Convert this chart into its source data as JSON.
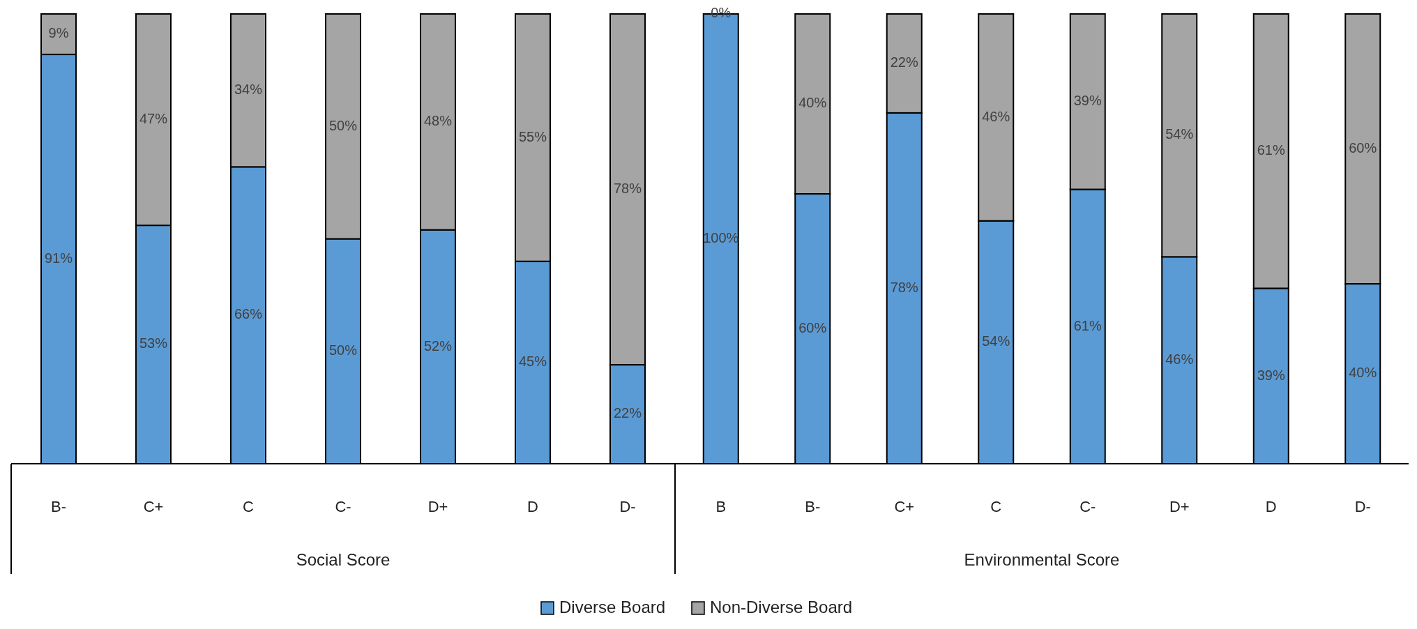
{
  "chart_data": [
    {
      "type": "bar",
      "stacked": true,
      "xlabel": "Social Score",
      "legend": "bottom",
      "categories": [
        "B-",
        "C+",
        "C",
        "C-",
        "D+",
        "D",
        "D-"
      ],
      "series": [
        {
          "name": "Diverse Board",
          "color": "#5b9bd5",
          "values": [
            91,
            53,
            66,
            50,
            52,
            45,
            22
          ],
          "value_labels": [
            "91%",
            "53%",
            "66%",
            "50%",
            "52%",
            "45%",
            "22%"
          ]
        },
        {
          "name": "Non-Diverse Board",
          "color": "#a5a5a5",
          "values": [
            9,
            47,
            34,
            50,
            48,
            55,
            78
          ],
          "value_labels": [
            "9%",
            "47%",
            "34%",
            "50%",
            "48%",
            "55%",
            "78%"
          ]
        }
      ]
    },
    {
      "type": "bar",
      "stacked": true,
      "xlabel": "Environmental Score",
      "categories": [
        "B",
        "B-",
        "C+",
        "C",
        "C-",
        "D+",
        "D",
        "D-"
      ],
      "series": [
        {
          "color": "#5b9bd5",
          "values": [
            100,
            60,
            78,
            54,
            61,
            46,
            39,
            40
          ],
          "value_labels": [
            "100%",
            "60%",
            "78%",
            "54%",
            "61%",
            "46%",
            "39%",
            "40%"
          ]
        },
        {
          "color": "#a5a5a5",
          "values": [
            0,
            40,
            22,
            46,
            39,
            54,
            61,
            60
          ],
          "value_labels": [
            "0%",
            "40%",
            "22%",
            "46%",
            "39%",
            "54%",
            "61%",
            "60%"
          ]
        }
      ]
    }
  ]
}
